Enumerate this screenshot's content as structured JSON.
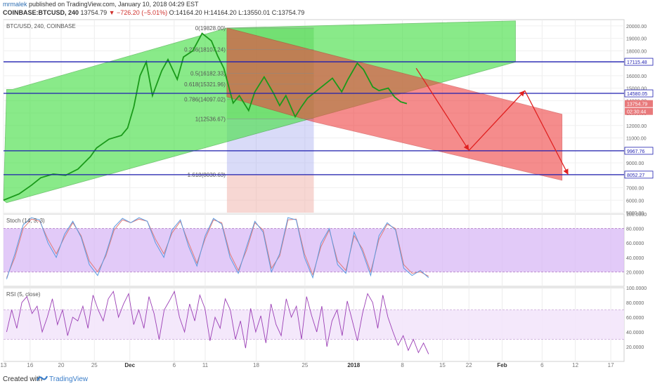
{
  "header": {
    "author": "mrmalek",
    "publish_text": "published on TradingView.com, January 10, 2018 04:29 EST",
    "symbol": "COINBASE:BTCUSD, 240",
    "last": "13754.79",
    "change": "▼ −726.20 (−5.01%)",
    "ohlc": "O:14164.20  H:14164.20  L:13550.01  C:13754.79"
  },
  "colors": {
    "candle": "#1a9a1a",
    "channel_up_fill": "#4be04b",
    "channel_down_fill": "#f04040",
    "hline": "#1f1fb0",
    "arrow": "#e02020",
    "stoch_band": "#d8b8f5",
    "stoch_k": "#5b9be0",
    "stoch_d": "#e07b7b",
    "rsi_band": "#f3e6fb",
    "rsi_line": "#9b3fb5"
  },
  "chart_data": [
    {
      "type": "line",
      "title": "BTC/USD, 240, COINBASE",
      "y_range": [
        5000,
        20500
      ],
      "y_ticks": [
        "20000.00",
        "19000.00",
        "18000.00",
        "17000.00",
        "16000.00",
        "15000.00",
        "14000.00",
        "13000.00",
        "12000.00",
        "11000.00",
        "10000.00",
        "9000.00",
        "8000.00",
        "7000.00",
        "6000.00",
        "5000.00"
      ],
      "x_ticks": [
        "13",
        "16",
        "20",
        "25",
        "Dec",
        "6",
        "11",
        "18",
        "25",
        "2018",
        "8",
        "15",
        "22",
        "Feb",
        "6",
        "12",
        "17"
      ],
      "price_series": {
        "x": [
          0,
          5,
          9,
          12,
          16,
          20,
          24,
          28,
          30,
          34,
          38,
          40,
          42,
          44,
          46,
          48,
          51,
          53,
          56,
          58,
          61,
          64,
          67,
          69,
          71,
          74,
          76,
          79,
          81,
          84,
          87,
          89,
          91,
          94,
          96,
          98,
          101,
          103,
          106,
          109,
          111,
          114,
          116,
          119,
          121,
          124,
          126,
          128,
          130
        ],
        "y": [
          6000,
          6500,
          7200,
          7800,
          8100,
          8000,
          8500,
          9500,
          10200,
          10900,
          11200,
          11800,
          13500,
          16000,
          17100,
          14400,
          16400,
          17300,
          15700,
          17500,
          18000,
          19400,
          18800,
          17600,
          16600,
          13800,
          14400,
          13200,
          14700,
          15900,
          14600,
          13600,
          14400,
          12700,
          13500,
          14200,
          14800,
          15200,
          15800,
          14700,
          15700,
          17000,
          16500,
          15100,
          14800,
          15000,
          14300,
          13900,
          13755
        ]
      },
      "horizontal_levels": [
        {
          "value": 17115.48,
          "label": "17115.48"
        },
        {
          "value": 14580.05,
          "label": "14580.05"
        },
        {
          "value": 9967.76,
          "label": "9967.76"
        },
        {
          "value": 8052.27,
          "label": "8052.27"
        }
      ],
      "price_labels": [
        {
          "value": 13754.79,
          "label": "13754.79",
          "color": "#e8797b"
        },
        {
          "value": 12500,
          "label": "02:30:44",
          "color": "#e8797b"
        }
      ],
      "fib_levels": [
        {
          "label": "0(19828.00)",
          "value": 19828.0
        },
        {
          "label": "0.236(18107.24)",
          "value": 18107.24
        },
        {
          "label": "0.5(16182.33)",
          "value": 16182.33
        },
        {
          "label": "0.618(15321.96)",
          "value": 15321.96
        },
        {
          "label": "0.786(14097.02)",
          "value": 14097.02
        },
        {
          "label": "1(12536.67)",
          "value": 12536.67
        },
        {
          "label": "1.618(8030.63)",
          "value": 8030.63
        }
      ],
      "projection_arrows": [
        {
          "from": [
            133,
            16600
          ],
          "to": [
            150,
            10000
          ]
        },
        {
          "from": [
            150,
            10000
          ],
          "to": [
            168,
            14800
          ]
        },
        {
          "from": [
            168,
            14800
          ],
          "to": [
            182,
            8050
          ]
        }
      ]
    },
    {
      "type": "line",
      "title": "Stoch (14, 3, 3)",
      "y_range": [
        0,
        100
      ],
      "y_ticks": [
        "100.0000",
        "80.0000",
        "60.0000",
        "40.0000",
        "20.0000"
      ],
      "band": [
        20,
        80
      ],
      "k_values": [
        10,
        45,
        85,
        95,
        92,
        60,
        40,
        72,
        90,
        68,
        30,
        15,
        45,
        82,
        94,
        88,
        95,
        90,
        60,
        40,
        78,
        92,
        55,
        28,
        70,
        94,
        86,
        40,
        18,
        55,
        90,
        75,
        20,
        45,
        95,
        92,
        40,
        12,
        60,
        80,
        30,
        18,
        75,
        48,
        15,
        70,
        88,
        78,
        25,
        15,
        22,
        12
      ],
      "d_values": [
        12,
        40,
        80,
        93,
        90,
        65,
        45,
        68,
        88,
        70,
        35,
        20,
        42,
        78,
        92,
        88,
        93,
        90,
        65,
        45,
        74,
        90,
        60,
        32,
        66,
        92,
        88,
        45,
        22,
        50,
        88,
        78,
        25,
        42,
        92,
        93,
        45,
        16,
        55,
        78,
        35,
        22,
        70,
        52,
        20,
        65,
        86,
        80,
        30,
        18,
        20,
        14
      ]
    },
    {
      "type": "line",
      "title": "RSI (5, close)",
      "y_range": [
        0,
        100
      ],
      "y_ticks": [
        "100.0000",
        "80.0000",
        "60.0000",
        "40.0000",
        "20.0000"
      ],
      "band": [
        30,
        70
      ],
      "values": [
        40,
        70,
        45,
        80,
        88,
        65,
        75,
        40,
        60,
        85,
        50,
        70,
        35,
        60,
        55,
        75,
        45,
        90,
        70,
        55,
        85,
        95,
        60,
        78,
        92,
        50,
        70,
        45,
        88,
        65,
        30,
        70,
        82,
        95,
        60,
        40,
        78,
        55,
        90,
        72,
        28,
        60,
        45,
        85,
        70,
        30,
        55,
        18,
        72,
        40,
        62,
        25,
        78,
        50,
        35,
        85,
        60,
        75,
        30,
        88,
        62,
        40,
        75,
        20,
        55,
        70,
        35,
        82,
        55,
        28,
        65,
        92,
        80,
        45,
        90,
        60,
        40,
        22,
        35,
        15,
        30,
        12,
        25,
        10
      ]
    }
  ],
  "footer": {
    "created": "Created with",
    "brand": "TradingView"
  }
}
